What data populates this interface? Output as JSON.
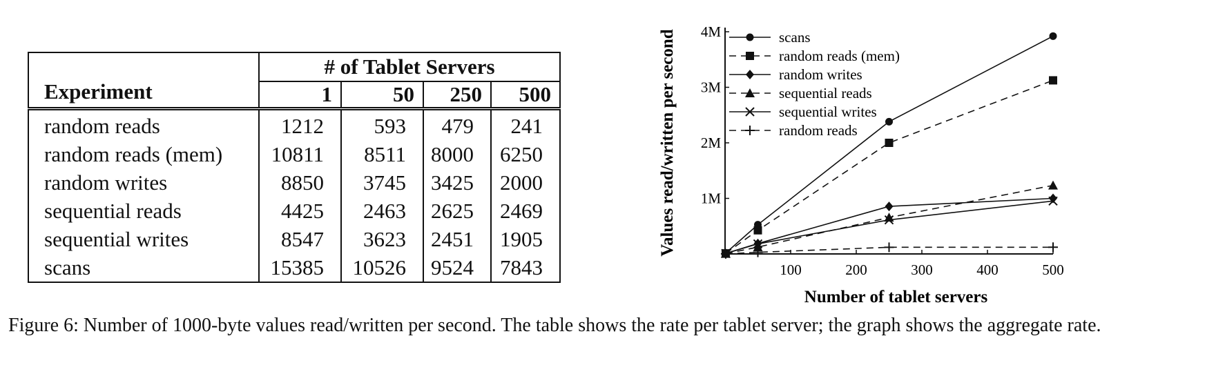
{
  "table": {
    "header_group": "# of Tablet Servers",
    "experiment_label": "Experiment",
    "columns": [
      "1",
      "50",
      "250",
      "500"
    ],
    "rows": [
      {
        "name": "random reads",
        "values": [
          "1212",
          "593",
          "479",
          "241"
        ]
      },
      {
        "name": "random reads (mem)",
        "values": [
          "10811",
          "8511",
          "8000",
          "6250"
        ]
      },
      {
        "name": "random writes",
        "values": [
          "8850",
          "3745",
          "3425",
          "2000"
        ]
      },
      {
        "name": "sequential reads",
        "values": [
          "4425",
          "2463",
          "2625",
          "2469"
        ]
      },
      {
        "name": "sequential writes",
        "values": [
          "8547",
          "3623",
          "2451",
          "1905"
        ]
      },
      {
        "name": "scans",
        "values": [
          "15385",
          "10526",
          "9524",
          "7843"
        ]
      }
    ]
  },
  "chart_data": {
    "type": "line",
    "xlabel": "Number of tablet servers",
    "ylabel": "Values read/written per second",
    "xlim": [
      0,
      500
    ],
    "ylim": [
      0,
      4000000
    ],
    "xticks": [
      100,
      200,
      300,
      400,
      500
    ],
    "yticks": [
      {
        "value": 1000000,
        "label": "1M"
      },
      {
        "value": 2000000,
        "label": "2M"
      },
      {
        "value": 3000000,
        "label": "3M"
      },
      {
        "value": 4000000,
        "label": "4M"
      }
    ],
    "x": [
      1,
      50,
      250,
      500
    ],
    "legend_position": "top-left",
    "series": [
      {
        "name": "scans",
        "marker": "circle",
        "dash": "solid",
        "values": [
          15385,
          526300,
          2381000,
          3921500
        ]
      },
      {
        "name": "random reads (mem)",
        "marker": "square",
        "dash": "dashed",
        "values": [
          10811,
          425550,
          2000000,
          3125000
        ]
      },
      {
        "name": "random writes",
        "marker": "diamond",
        "dash": "solid",
        "values": [
          8850,
          187250,
          856250,
          1000000
        ]
      },
      {
        "name": "sequential reads",
        "marker": "triangle",
        "dash": "dashed",
        "values": [
          4425,
          123150,
          656250,
          1234500
        ]
      },
      {
        "name": "sequential writes",
        "marker": "cross",
        "dash": "solid",
        "values": [
          8547,
          181150,
          612750,
          952500
        ]
      },
      {
        "name": "random reads",
        "marker": "plus",
        "dash": "dashed",
        "values": [
          1212,
          29650,
          119750,
          120500
        ]
      }
    ]
  },
  "caption": {
    "text": "Figure 6:  Number of 1000-byte values read/written per second.  The table shows the rate per tablet server; the graph shows the aggregate rate."
  }
}
